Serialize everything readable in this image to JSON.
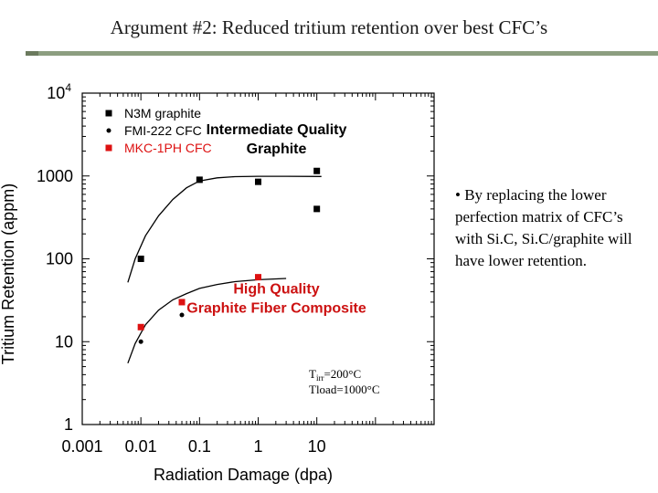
{
  "title": "Argument #2: Reduced tritium retention over best CFC’s",
  "bullet_text": "• By replacing the lower perfection matrix of CFC’s with Si.C, Si.C/graphite will have lower retention.",
  "chart_data": {
    "type": "scatter",
    "xlabel": "Radiation Damage (dpa)",
    "ylabel": "Tritium Retention (appm)",
    "xscale": "log",
    "yscale": "log",
    "xlim": [
      0.001,
      1000
    ],
    "ylim": [
      1,
      10000
    ],
    "x_ticks": [
      {
        "v": 0.001,
        "label": "0.001"
      },
      {
        "v": 0.01,
        "label": "0.01"
      },
      {
        "v": 0.1,
        "label": "0.1"
      },
      {
        "v": 1,
        "label": "1"
      },
      {
        "v": 10,
        "label": "10"
      }
    ],
    "y_ticks": [
      {
        "v": 1,
        "label": "1"
      },
      {
        "v": 10,
        "label": "10"
      },
      {
        "v": 100,
        "label": "100"
      },
      {
        "v": 1000,
        "label": "1000"
      }
    ],
    "y_top_label": {
      "base": "10",
      "exp": "4"
    },
    "series": [
      {
        "name": "N3M graphite",
        "color": "#000000",
        "marker": "square",
        "points": [
          [
            0.01,
            100
          ],
          [
            0.1,
            900
          ],
          [
            1,
            850
          ],
          [
            10,
            1150
          ],
          [
            10,
            400
          ]
        ]
      },
      {
        "name": "FMI-222 CFC",
        "color": "#000000",
        "marker": "circle",
        "points": [
          [
            0.01,
            10
          ],
          [
            0.05,
            21
          ]
        ]
      },
      {
        "name": "MKC-1PH CFC",
        "color": "#dd1111",
        "marker": "square",
        "points": [
          [
            0.01,
            15
          ],
          [
            0.05,
            30
          ],
          [
            1,
            60
          ]
        ]
      }
    ],
    "curves": [
      {
        "color": "#000000",
        "points": [
          [
            0.006,
            52
          ],
          [
            0.008,
            100
          ],
          [
            0.012,
            190
          ],
          [
            0.02,
            330
          ],
          [
            0.035,
            520
          ],
          [
            0.06,
            720
          ],
          [
            0.1,
            870
          ],
          [
            0.2,
            950
          ],
          [
            0.4,
            980
          ],
          [
            1,
            990
          ],
          [
            3,
            990
          ],
          [
            12,
            985
          ]
        ]
      },
      {
        "color": "#000000",
        "points": [
          [
            0.006,
            5.5
          ],
          [
            0.008,
            9.5
          ],
          [
            0.012,
            16
          ],
          [
            0.02,
            24
          ],
          [
            0.035,
            32
          ],
          [
            0.06,
            38
          ],
          [
            0.1,
            44
          ],
          [
            0.2,
            49
          ],
          [
            0.4,
            53
          ],
          [
            1,
            56
          ],
          [
            3,
            58
          ]
        ]
      }
    ],
    "annotations": [
      {
        "lines": [
          "Intermediate Quality",
          "Graphite"
        ],
        "x": 1,
        "y": 3200,
        "color": "#000000"
      },
      {
        "lines": [
          "High Quality",
          "Graphite Fiber Composite"
        ],
        "x": 1,
        "y": 38,
        "color": "#cc1111"
      }
    ],
    "conditions": {
      "t_label": "T",
      "t_sub": "irr",
      "t_value": "=200°C",
      "tload": "Tload=1000°C"
    },
    "legend_position": "top-left",
    "grid": false
  }
}
